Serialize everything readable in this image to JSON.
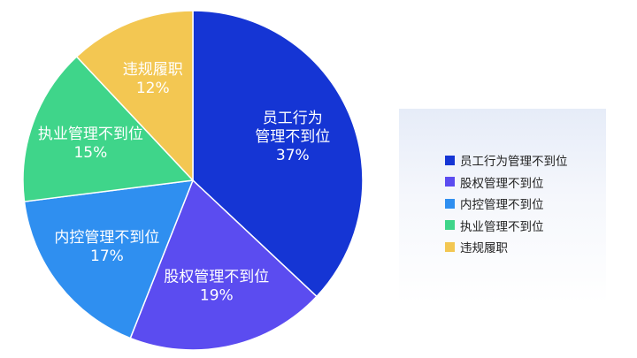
{
  "chart_data": {
    "type": "pie",
    "slices": [
      {
        "label_lines": [
          "员工行为",
          "管理不到位"
        ],
        "legend": "员工行为管理不到位",
        "value": 37,
        "value_label": "37%",
        "color": "#1535d4"
      },
      {
        "label_lines": [
          "股权管理不到位"
        ],
        "legend": "股权管理不到位",
        "value": 19,
        "value_label": "19%",
        "color": "#5b4cf0"
      },
      {
        "label_lines": [
          "内控管理不到位"
        ],
        "legend": "内控管理不到位",
        "value": 17,
        "value_label": "17%",
        "color": "#2f8ff0"
      },
      {
        "label_lines": [
          "执业管理不到位"
        ],
        "legend": "执业管理不到位",
        "value": 15,
        "value_label": "15%",
        "color": "#3fd58a"
      },
      {
        "label_lines": [
          "违规履职"
        ],
        "legend": "违规履职",
        "value": 12,
        "value_label": "12%",
        "color": "#f3c752"
      }
    ],
    "legend_position": "right"
  }
}
